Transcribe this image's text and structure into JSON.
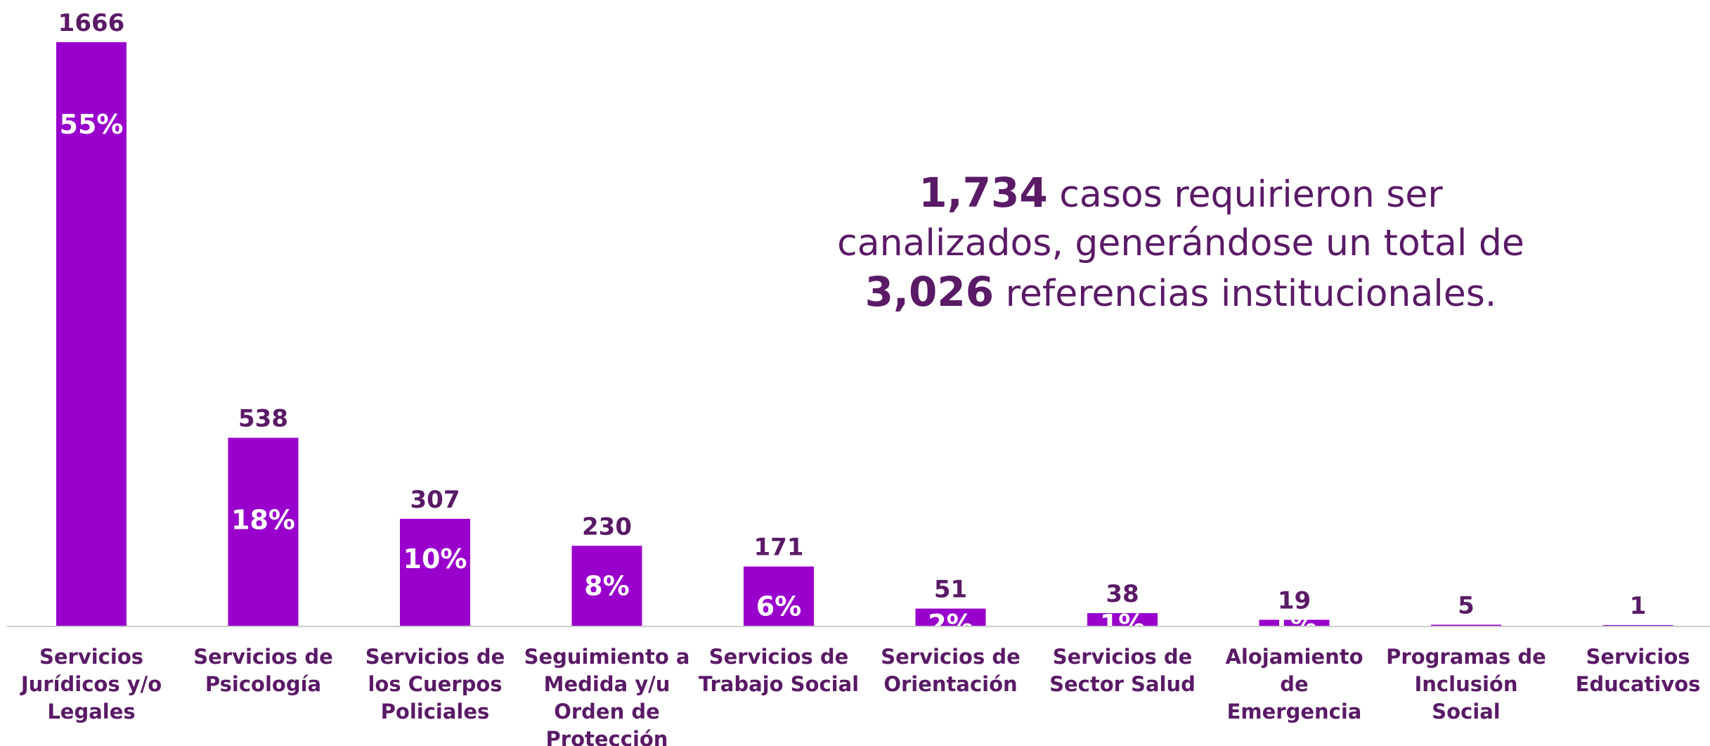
{
  "chart_data": {
    "type": "bar",
    "categories": [
      [
        "Servicios",
        "Jurídicos y/o",
        "Legales"
      ],
      [
        "Servicios de",
        "Psicología"
      ],
      [
        "Servicios de",
        "los Cuerpos",
        "Policiales"
      ],
      [
        "Seguimiento a",
        "Medida y/u",
        "Orden de",
        "Protección"
      ],
      [
        "Servicios de",
        "Trabajo Social"
      ],
      [
        "Servicios de",
        "Orientación"
      ],
      [
        "Servicios de",
        "Sector Salud"
      ],
      [
        "Alojamiento",
        "de",
        "Emergencia"
      ],
      [
        "Programas de",
        "Inclusión",
        "Social"
      ],
      [
        "Servicios",
        "Educativos"
      ]
    ],
    "values": [
      1666,
      538,
      307,
      230,
      171,
      51,
      38,
      19,
      5,
      1
    ],
    "value_labels": [
      "1666",
      "538",
      "307",
      "230",
      "171",
      "51",
      "38",
      "19",
      "5",
      "1"
    ],
    "percent_labels": [
      "55%",
      "18%",
      "10%",
      "8%",
      "6%",
      "2%",
      "1%",
      "1%",
      "",
      ""
    ],
    "ylim": [
      0,
      1666
    ],
    "grid": false,
    "bar_color": "#9900cc",
    "text_color": "#5a1a66",
    "axis_color": "#cccccc"
  },
  "annotation": {
    "line1_bold": "1,734",
    "line1_rest": " casos requirieron ser",
    "line2": "canalizados, generándose un total de",
    "line3_bold": "3,026",
    "line3_rest": " referencias institucionales."
  }
}
